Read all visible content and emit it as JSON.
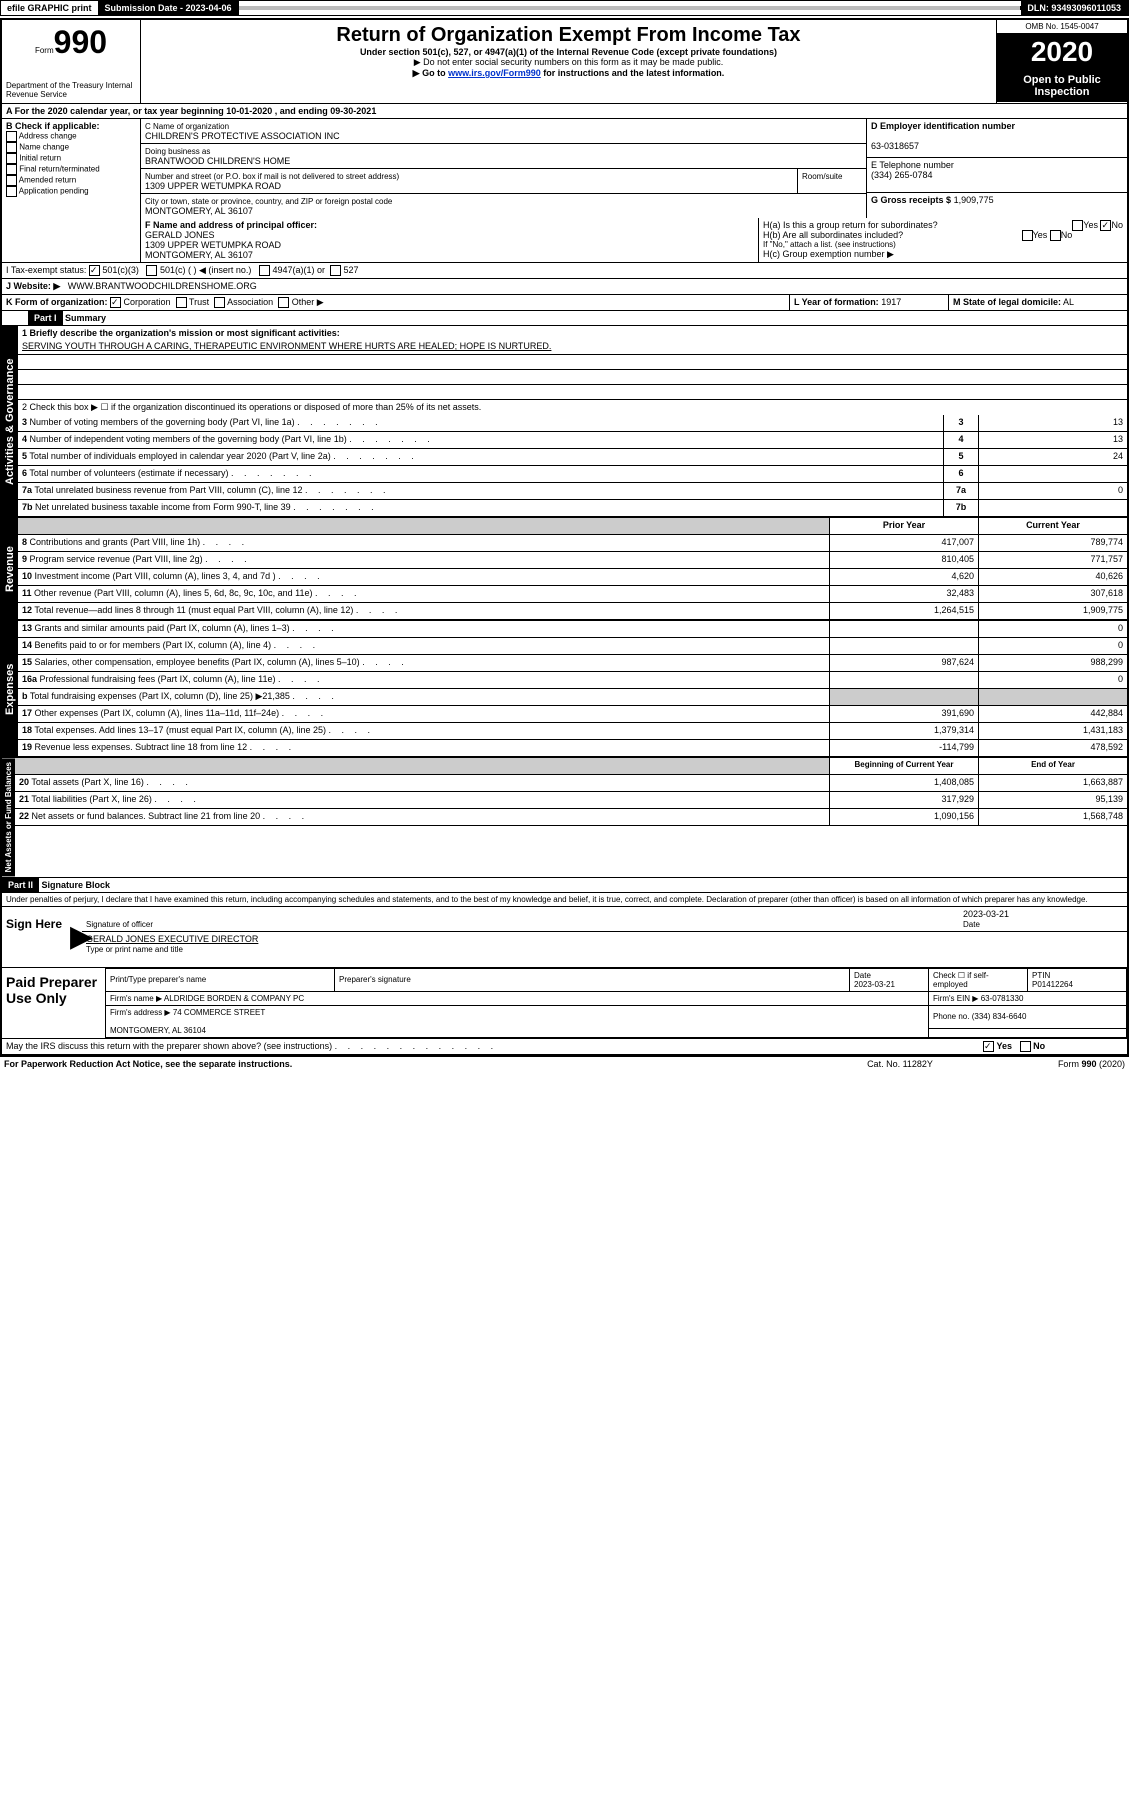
{
  "topbar": {
    "efile": "efile GRAPHIC print",
    "submission": "Submission Date - 2023-04-06",
    "dln": "DLN: 93493096011053"
  },
  "header": {
    "form_prefix": "Form",
    "form_number": "990",
    "dept": "Department of the Treasury\nInternal Revenue Service",
    "title": "Return of Organization Exempt From Income Tax",
    "subtitle": "Under section 501(c), 527, or 4947(a)(1) of the Internal Revenue Code (except private foundations)",
    "note1": "▶ Do not enter social security numbers on this form as it may be made public.",
    "note2_pre": "▶ Go to ",
    "note2_link": "www.irs.gov/Form990",
    "note2_post": " for instructions and the latest information.",
    "omb": "OMB No. 1545-0047",
    "year": "2020",
    "open": "Open to Public Inspection"
  },
  "period": {
    "a": "A For the 2020 calendar year, or tax year beginning 10-01-2020    , and ending 09-30-2021"
  },
  "b_check": {
    "label": "B Check if applicable:",
    "items": [
      "Address change",
      "Name change",
      "Initial return",
      "Final return/terminated",
      "Amended return",
      "Application pending"
    ]
  },
  "c_block": {
    "name_lbl": "C Name of organization",
    "name": "CHILDREN'S PROTECTIVE ASSOCIATION INC",
    "dba_lbl": "Doing business as",
    "dba": "BRANTWOOD CHILDREN'S HOME",
    "addr_lbl": "Number and street (or P.O. box if mail is not delivered to street address)",
    "room_lbl": "Room/suite",
    "addr": "1309 UPPER WETUMPKA ROAD",
    "city_lbl": "City or town, state or province, country, and ZIP or foreign postal code",
    "city": "MONTGOMERY, AL  36107"
  },
  "d_block": {
    "lbl": "D Employer identification number",
    "val": "63-0318657"
  },
  "e_block": {
    "lbl": "E Telephone number",
    "val": "(334) 265-0784"
  },
  "g_block": {
    "lbl": "G Gross receipts $",
    "val": "1,909,775"
  },
  "f_block": {
    "lbl": "F Name and address of principal officer:",
    "val": "GERALD JONES\n1309 UPPER WETUMPKA ROAD\nMONTGOMERY, AL  36107"
  },
  "h_block": {
    "ha": "H(a)  Is this a group return for subordinates?",
    "hb": "H(b)  Are all subordinates included?",
    "hb_note": "If \"No,\" attach a list. (see instructions)",
    "hc": "H(c)  Group exemption number ▶",
    "yes": "Yes",
    "no": "No"
  },
  "tax_status": {
    "lbl": "I  Tax-exempt status:",
    "o1": "501(c)(3)",
    "o2": "501(c) (  ) ◀ (insert no.)",
    "o3": "4947(a)(1) or",
    "o4": "527"
  },
  "website": {
    "lbl": "J  Website: ▶",
    "val": "WWW.BRANTWOODCHILDRENSHOME.ORG"
  },
  "k_block": {
    "lbl": "K Form of organization:",
    "o1": "Corporation",
    "o2": "Trust",
    "o3": "Association",
    "o4": "Other ▶"
  },
  "l_block": {
    "lbl": "L Year of formation:",
    "val": "1917"
  },
  "m_block": {
    "lbl": "M State of legal domicile:",
    "val": "AL"
  },
  "part1": {
    "hdr": "Part I",
    "title": "Summary",
    "q1": "1  Briefly describe the organization's mission or most significant activities:",
    "mission": "SERVING YOUTH THROUGH A CARING, THERAPEUTIC ENVIRONMENT WHERE HURTS ARE HEALED; HOPE IS NURTURED.",
    "q2": "2  Check this box ▶ ☐  if the organization discontinued its operations or disposed of more than 25% of its net assets.",
    "py_hdr": "Prior Year",
    "cy_hdr": "Current Year",
    "boy_hdr": "Beginning of Current Year",
    "eoy_hdr": "End of Year",
    "vtab_gov": "Activities & Governance",
    "vtab_rev": "Revenue",
    "vtab_exp": "Expenses",
    "vtab_net": "Net Assets or Fund Balances",
    "rows_gov": [
      {
        "n": "3",
        "t": "Number of voting members of the governing body (Part VI, line 1a)",
        "v": "13"
      },
      {
        "n": "4",
        "t": "Number of independent voting members of the governing body (Part VI, line 1b)",
        "v": "13"
      },
      {
        "n": "5",
        "t": "Total number of individuals employed in calendar year 2020 (Part V, line 2a)",
        "v": "24"
      },
      {
        "n": "6",
        "t": "Total number of volunteers (estimate if necessary)",
        "v": ""
      },
      {
        "n": "7a",
        "t": "Total unrelated business revenue from Part VIII, column (C), line 12",
        "v": "0"
      },
      {
        "n": "7b",
        "t": "Net unrelated business taxable income from Form 990-T, line 39",
        "v": ""
      }
    ],
    "rows_rev": [
      {
        "n": "8",
        "t": "Contributions and grants (Part VIII, line 1h)",
        "py": "417,007",
        "cy": "789,774"
      },
      {
        "n": "9",
        "t": "Program service revenue (Part VIII, line 2g)",
        "py": "810,405",
        "cy": "771,757"
      },
      {
        "n": "10",
        "t": "Investment income (Part VIII, column (A), lines 3, 4, and 7d )",
        "py": "4,620",
        "cy": "40,626"
      },
      {
        "n": "11",
        "t": "Other revenue (Part VIII, column (A), lines 5, 6d, 8c, 9c, 10c, and 11e)",
        "py": "32,483",
        "cy": "307,618"
      },
      {
        "n": "12",
        "t": "Total revenue—add lines 8 through 11 (must equal Part VIII, column (A), line 12)",
        "py": "1,264,515",
        "cy": "1,909,775"
      }
    ],
    "rows_exp": [
      {
        "n": "13",
        "t": "Grants and similar amounts paid (Part IX, column (A), lines 1–3)",
        "py": "",
        "cy": "0"
      },
      {
        "n": "14",
        "t": "Benefits paid to or for members (Part IX, column (A), line 4)",
        "py": "",
        "cy": "0"
      },
      {
        "n": "15",
        "t": "Salaries, other compensation, employee benefits (Part IX, column (A), lines 5–10)",
        "py": "987,624",
        "cy": "988,299"
      },
      {
        "n": "16a",
        "t": "Professional fundraising fees (Part IX, column (A), line 11e)",
        "py": "",
        "cy": "0"
      },
      {
        "n": "b",
        "t": "Total fundraising expenses (Part IX, column (D), line 25) ▶21,385",
        "py": "shade",
        "cy": "shade"
      },
      {
        "n": "17",
        "t": "Other expenses (Part IX, column (A), lines 11a–11d, 11f–24e)",
        "py": "391,690",
        "cy": "442,884"
      },
      {
        "n": "18",
        "t": "Total expenses. Add lines 13–17 (must equal Part IX, column (A), line 25)",
        "py": "1,379,314",
        "cy": "1,431,183"
      },
      {
        "n": "19",
        "t": "Revenue less expenses. Subtract line 18 from line 12",
        "py": "-114,799",
        "cy": "478,592"
      }
    ],
    "rows_net": [
      {
        "n": "20",
        "t": "Total assets (Part X, line 16)",
        "py": "1,408,085",
        "cy": "1,663,887"
      },
      {
        "n": "21",
        "t": "Total liabilities (Part X, line 26)",
        "py": "317,929",
        "cy": "95,139"
      },
      {
        "n": "22",
        "t": "Net assets or fund balances. Subtract line 21 from line 20",
        "py": "1,090,156",
        "cy": "1,568,748"
      }
    ]
  },
  "part2": {
    "hdr": "Part II",
    "title": "Signature Block",
    "decl": "Under penalties of perjury, I declare that I have examined this return, including accompanying schedules and statements, and to the best of my knowledge and belief, it is true, correct, and complete. Declaration of preparer (other than officer) is based on all information of which preparer has any knowledge.",
    "sign_here": "Sign Here",
    "sig_off": "Signature of officer",
    "date_lbl": "Date",
    "date": "2023-03-21",
    "officer": "GERALD JONES  EXECUTIVE DIRECTOR",
    "officer_sub": "Type or print name and title",
    "paid": "Paid Preparer Use Only",
    "prep_name_lbl": "Print/Type preparer's name",
    "prep_sig_lbl": "Preparer's signature",
    "prep_date": "2023-03-21",
    "check_self": "Check ☐ if self-employed",
    "ptin_lbl": "PTIN",
    "ptin": "P01412264",
    "firm_name_lbl": "Firm's name   ▶",
    "firm_name": "ALDRIDGE BORDEN & COMPANY PC",
    "firm_ein_lbl": "Firm's EIN ▶",
    "firm_ein": "63-0781330",
    "firm_addr_lbl": "Firm's address ▶",
    "firm_addr": "74 COMMERCE STREET",
    "firm_city": "MONTGOMERY, AL  36104",
    "phone_lbl": "Phone no.",
    "phone": "(334) 834-6640",
    "may_irs": "May the IRS discuss this return with the preparer shown above? (see instructions)"
  },
  "footer": {
    "paperwork": "For Paperwork Reduction Act Notice, see the separate instructions.",
    "catno": "Cat. No. 11282Y",
    "formno": "Form 990 (2020)"
  }
}
